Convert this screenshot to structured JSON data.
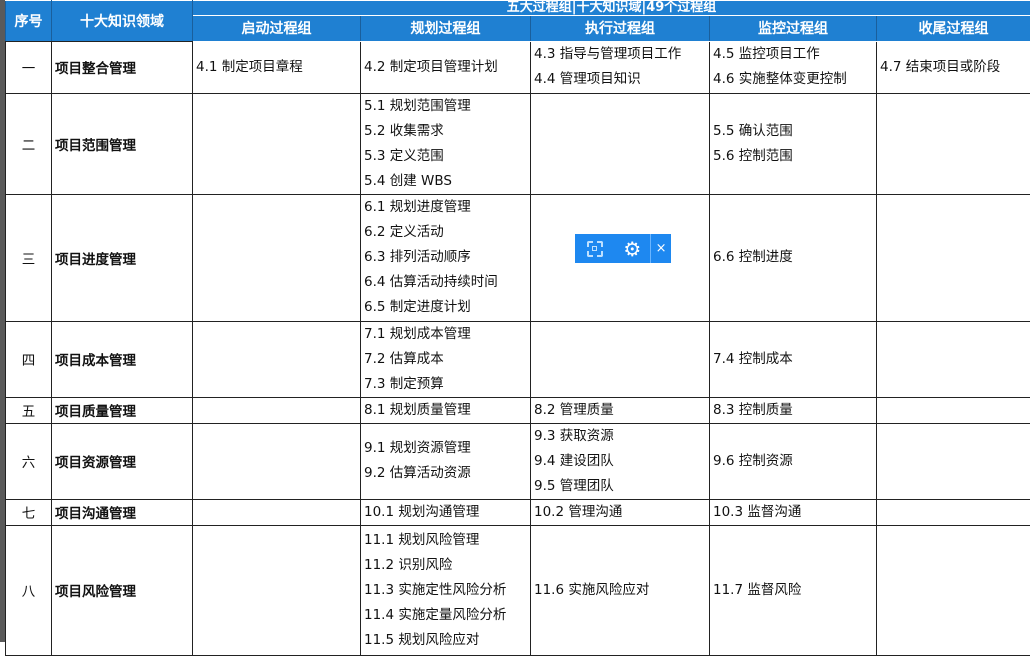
{
  "header": {
    "col_index": "序号",
    "col_area": "十大知识领域",
    "title": "五大过程组|十大知识域|49个过程组",
    "groups": [
      "启动过程组",
      "规划过程组",
      "执行过程组",
      "监控过程组",
      "收尾过程组"
    ]
  },
  "rows": [
    {
      "index": "一",
      "area": "项目整合管理",
      "cells": [
        [
          "4.1 制定项目章程"
        ],
        [
          "4.2 制定项目管理计划"
        ],
        [
          "4.3 指导与管理项目工作",
          "4.4 管理项目知识"
        ],
        [
          "4.5 监控项目工作",
          "4.6 实施整体变更控制"
        ],
        [
          "4.7 结束项目或阶段"
        ]
      ]
    },
    {
      "index": "二",
      "area": "项目范围管理",
      "cells": [
        [],
        [
          "5.1 规划范围管理",
          "5.2 收集需求",
          "5.3 定义范围",
          "5.4 创建 WBS"
        ],
        [],
        [
          "5.5 确认范围",
          "5.6 控制范围"
        ],
        []
      ]
    },
    {
      "index": "三",
      "area": "项目进度管理",
      "cells": [
        [],
        [
          "6.1 规划进度管理",
          "6.2 定义活动",
          "6.3 排列活动顺序",
          "6.4 估算活动持续时间",
          "6.5 制定进度计划"
        ],
        [],
        [
          "6.6 控制进度"
        ],
        []
      ]
    },
    {
      "index": "四",
      "area": "项目成本管理",
      "cells": [
        [],
        [
          "7.1 规划成本管理",
          "7.2 估算成本",
          "7.3 制定预算"
        ],
        [],
        [
          "7.4 控制成本"
        ],
        []
      ]
    },
    {
      "index": "五",
      "area": "项目质量管理",
      "cells": [
        [],
        [
          "8.1 规划质量管理"
        ],
        [
          "8.2 管理质量"
        ],
        [
          "8.3 控制质量"
        ],
        []
      ]
    },
    {
      "index": "六",
      "area": "项目资源管理",
      "cells": [
        [],
        [
          "9.1 规划资源管理",
          "9.2 估算活动资源"
        ],
        [
          "9.3 获取资源",
          "9.4 建设团队",
          "9.5 管理团队"
        ],
        [
          "9.6 控制资源"
        ],
        []
      ]
    },
    {
      "index": "七",
      "area": "项目沟通管理",
      "cells": [
        [],
        [
          "10.1 规划沟通管理"
        ],
        [
          "10.2 管理沟通"
        ],
        [
          "10.3 监督沟通"
        ],
        []
      ]
    },
    {
      "index": "八",
      "area": "项目风险管理",
      "cells": [
        [],
        [
          "11.1 规划风险管理",
          "11.2 识别风险",
          "11.3 实施定性风险分析",
          "11.4 实施定量风险分析",
          "11.5 规划风险应对"
        ],
        [
          "11.6 实施风险应对"
        ],
        [
          "11.7 监督风险"
        ],
        []
      ]
    }
  ],
  "toolbar": {
    "icons": [
      "screenshot-icon",
      "gear-icon",
      "close-icon"
    ],
    "close_glyph": "×",
    "gear_glyph": "⚙"
  },
  "colors": {
    "header_bg": "#1f80d2",
    "toolbar_bg": "#1e88f0"
  }
}
